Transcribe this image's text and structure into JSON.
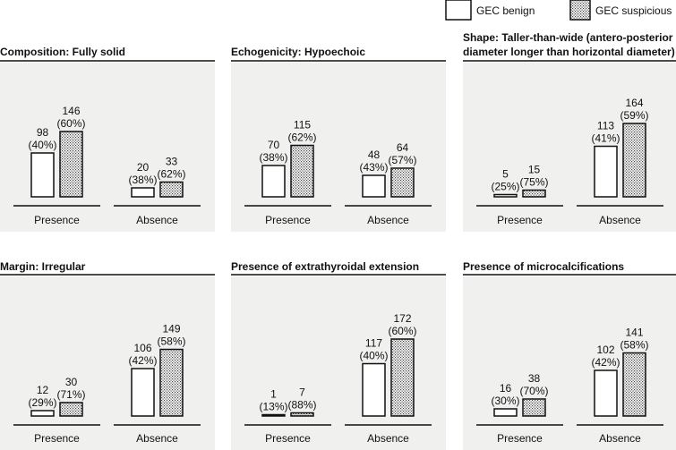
{
  "legend": {
    "benign_label": "GEC benign",
    "suspicious_label": "GEC suspicious"
  },
  "colors": {
    "panel_background": "#f0f0ee",
    "bar_stroke": "#111111",
    "benign_fill": "#ffffff",
    "suspicious_dot": "#444444"
  },
  "chart_data": [
    {
      "type": "bar",
      "title": "Composition: Fully solid",
      "categories": [
        "Presence",
        "Absence"
      ],
      "series": [
        {
          "name": "GEC benign",
          "values": [
            98,
            20
          ],
          "percent_labels": [
            "(40%)",
            "(38%)"
          ]
        },
        {
          "name": "GEC suspicious",
          "values": [
            146,
            33
          ],
          "percent_labels": [
            "(60%)",
            "(62%)"
          ]
        }
      ],
      "ylim": [
        0,
        180
      ]
    },
    {
      "type": "bar",
      "title": "Echogenicity: Hypoechoic",
      "categories": [
        "Presence",
        "Absence"
      ],
      "series": [
        {
          "name": "GEC benign",
          "values": [
            70,
            48
          ],
          "percent_labels": [
            "(38%)",
            "(43%)"
          ]
        },
        {
          "name": "GEC suspicious",
          "values": [
            115,
            64
          ],
          "percent_labels": [
            "(62%)",
            "(57%)"
          ]
        }
      ],
      "ylim": [
        0,
        180
      ]
    },
    {
      "type": "bar",
      "title": "Shape: Taller-than-wide (antero-posterior diameter longer than horizontal diameter)",
      "title_lines": [
        "Shape: Taller-than-wide (antero-posterior",
        "diameter longer than horizontal diameter)"
      ],
      "categories": [
        "Presence",
        "Absence"
      ],
      "series": [
        {
          "name": "GEC benign",
          "values": [
            5,
            113
          ],
          "percent_labels": [
            "(25%)",
            "(41%)"
          ]
        },
        {
          "name": "GEC suspicious",
          "values": [
            15,
            164
          ],
          "percent_labels": [
            "(75%)",
            "(59%)"
          ]
        }
      ],
      "ylim": [
        0,
        180
      ]
    },
    {
      "type": "bar",
      "title": "Margin: Irregular",
      "categories": [
        "Presence",
        "Absence"
      ],
      "series": [
        {
          "name": "GEC benign",
          "values": [
            12,
            106
          ],
          "percent_labels": [
            "(29%)",
            "(42%)"
          ]
        },
        {
          "name": "GEC suspicious",
          "values": [
            30,
            149
          ],
          "percent_labels": [
            "(71%)",
            "(58%)"
          ]
        }
      ],
      "ylim": [
        0,
        180
      ]
    },
    {
      "type": "bar",
      "title": "Presence of extrathyroidal extension",
      "categories": [
        "Presence",
        "Absence"
      ],
      "series": [
        {
          "name": "GEC benign",
          "values": [
            1,
            117
          ],
          "percent_labels": [
            "(13%)",
            "(40%)"
          ]
        },
        {
          "name": "GEC suspicious",
          "values": [
            7,
            172
          ],
          "percent_labels": [
            "(88%)",
            "(60%)"
          ]
        }
      ],
      "ylim": [
        0,
        180
      ]
    },
    {
      "type": "bar",
      "title": "Presence of microcalcifications",
      "categories": [
        "Presence",
        "Absence"
      ],
      "series": [
        {
          "name": "GEC benign",
          "values": [
            16,
            102
          ],
          "percent_labels": [
            "(30%)",
            "(42%)"
          ]
        },
        {
          "name": "GEC suspicious",
          "values": [
            38,
            141
          ],
          "percent_labels": [
            "(70%)",
            "(58%)"
          ]
        }
      ],
      "ylim": [
        0,
        180
      ]
    }
  ]
}
